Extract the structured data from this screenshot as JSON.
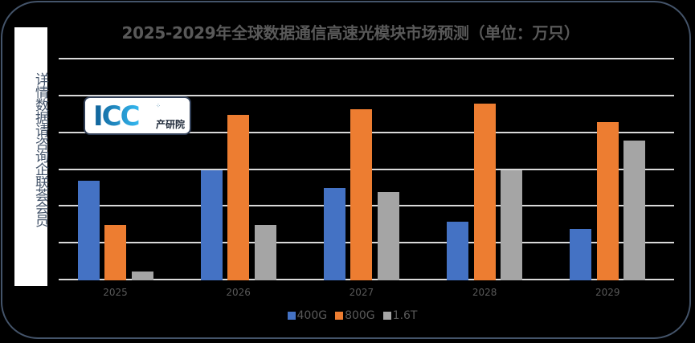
{
  "title": "2025-2029年全球数据通信高速光模块市场预测（单位：万只）",
  "side_note": "详情数据请咨询企联荟会员",
  "logo": {
    "mark": "ICC",
    "text": "产研院"
  },
  "colors": {
    "400G": "#4472c4",
    "800G": "#ed7d31",
    "1.6T": "#a5a5a5",
    "background": "#000000",
    "gridline": "#d9d9d9",
    "frame": "#44546a"
  },
  "chart_data": {
    "type": "bar",
    "title": "2025-2029年全球数据通信高速光模块市场预测（单位：万只）",
    "xlabel": "",
    "ylabel": "万只",
    "categories": [
      "2025",
      "2026",
      "2027",
      "2028",
      "2029"
    ],
    "series": [
      {
        "name": "400G",
        "values": [
          2.7,
          3.0,
          2.5,
          1.6,
          1.4
        ]
      },
      {
        "name": "800G",
        "values": [
          1.5,
          4.5,
          4.65,
          4.8,
          4.3
        ]
      },
      {
        "name": "1.6T",
        "values": [
          0.25,
          1.5,
          2.4,
          3.0,
          3.8
        ]
      }
    ],
    "ylim": [
      0,
      6
    ],
    "y_units_note": "no y-axis tick labels shown; values in gridline units",
    "grid": true,
    "legend_position": "bottom"
  },
  "legend": [
    {
      "label": "400G"
    },
    {
      "label": "800G"
    },
    {
      "label": "1.6T"
    }
  ]
}
